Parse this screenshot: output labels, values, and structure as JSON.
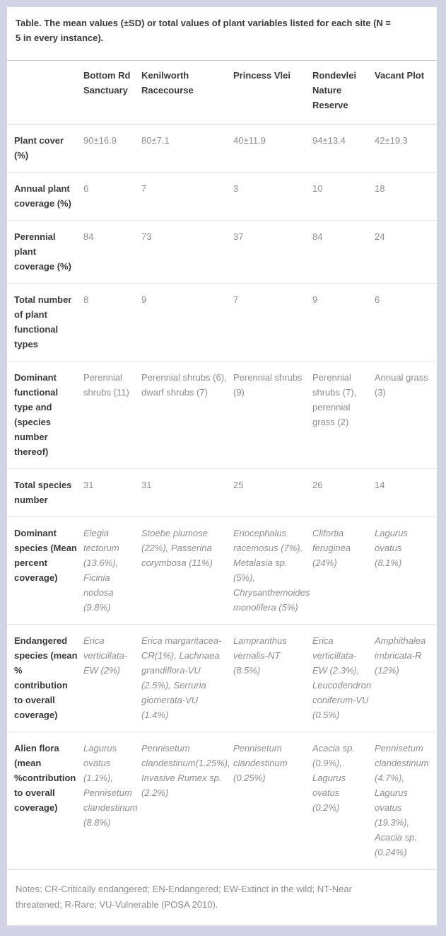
{
  "page": {
    "background_color": "#d2d4e6",
    "panel_color": "#ffffff"
  },
  "table": {
    "title": "Table. The mean values (±SD) or total values of plant variables listed for each site (N = 5 in every instance).",
    "columns": [
      "",
      "Bottom Rd Sanctuary",
      "Kenilworth Racecourse",
      "Princess Vlei",
      "Rondevlei Nature Reserve",
      "Vacant Plot"
    ],
    "rows": [
      {
        "label": "Plant cover (%)",
        "italic": false,
        "values": [
          "90±16.9",
          "80±7.1",
          "40±11.9",
          "94±13.4",
          "42±19.3"
        ]
      },
      {
        "label": "Annual plant coverage (%)",
        "italic": false,
        "values": [
          "6",
          "7",
          "3",
          "10",
          "18"
        ]
      },
      {
        "label": "Perennial plant coverage (%)",
        "italic": false,
        "values": [
          "84",
          "73",
          "37",
          "84",
          "24"
        ]
      },
      {
        "label": "Total number of plant functional types",
        "italic": false,
        "values": [
          "8",
          "9",
          "7",
          "9",
          "6"
        ]
      },
      {
        "label": "Dominant functional type and (species number thereof)",
        "italic": false,
        "values": [
          "Perennial shrubs (11)",
          "Perennial shrubs (6), dwarf shrubs (7)",
          "Perennial shrubs (9)",
          "Perennial shrubs (7), perennial grass (2)",
          "Annual grass (3)"
        ]
      },
      {
        "label": "Total species number",
        "italic": false,
        "values": [
          "31",
          "31",
          "25",
          "26",
          "14"
        ]
      },
      {
        "label": "Dominant species (Mean percent coverage)",
        "italic": true,
        "values": [
          "Elegia tectorum (13.6%), Ficinia nodosa (9.8%)",
          "Stoebe plumose (22%), Passerina corymbosa (11%)",
          "Eriocephalus racemosus (7%), Metalasia sp. (5%), Chrysanthemoides monolifera (5%)",
          "Clifortia feruginea (24%)",
          "Lagurus ovatus (8.1%)"
        ]
      },
      {
        "label": "Endangered species (mean % contribution to overall coverage)",
        "italic": true,
        "values": [
          "Erica verticillata-EW (2%)",
          "Erica margaritacea-CR(1%), Lachnaea grandiflora-VU (2.5%), Serruria glomerata-VU (1.4%)",
          "Lampranthus vernalis-NT (8.5%)",
          "Erica verticillata-EW (2.3%), Leucodendron coniferum-VU (0.5%)",
          "Amphithalea imbricata-R (12%)"
        ]
      },
      {
        "label": "Alien flora (mean %contribution to overall coverage)",
        "italic": true,
        "values": [
          "Lagurus ovatus (1.1%), Pennisetum clandestinum (8.8%)",
          "Pennisetum clandestinum(1.25%), Invasive Rumex sp. (2.2%)",
          "Pennisetum clandestinum (0.25%)",
          "Acacia sp. (0.9%), Lagurus ovatus (0.2%)",
          "Pennisetum clandestinum (4.7%), Lagurus ovatus (19.3%), Acacia sp. (0.24%)"
        ]
      }
    ],
    "notes": "Notes: CR-Critically endangered; EN-Endangered; EW-Extinct in the wild; NT-Near threatened; R-Rare; VU-Vulnerable (POSA 2010)."
  }
}
